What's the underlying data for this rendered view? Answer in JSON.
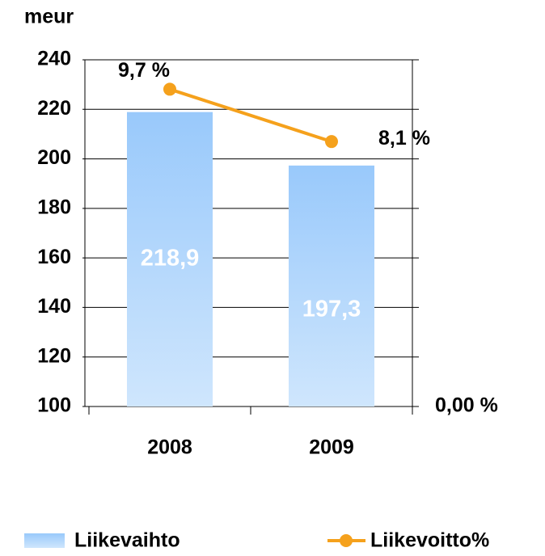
{
  "chart_data": {
    "type": "bar_line",
    "ylabel": "meur",
    "categories": [
      "2008",
      "2009"
    ],
    "series": [
      {
        "name": "Liikevaihto",
        "type": "bar",
        "color": "#99c9fb",
        "values": [
          218.9,
          197.3
        ],
        "value_labels": [
          "218,9",
          "197,3"
        ]
      },
      {
        "name": "Liikevoitto%",
        "type": "line",
        "axis": "y2",
        "color": "#f5a11c",
        "values": [
          9.7,
          8.1
        ],
        "value_labels": [
          "9,7 %",
          "8,1 %"
        ]
      }
    ],
    "ylim": [
      100,
      240
    ],
    "yticks": [
      100,
      120,
      140,
      160,
      180,
      200,
      220,
      240
    ],
    "y2lim": [
      0,
      10.6
    ],
    "y2ticks": [
      {
        "value": 0,
        "label": "0,00 %"
      }
    ],
    "grid": true,
    "legend": "bottom"
  }
}
